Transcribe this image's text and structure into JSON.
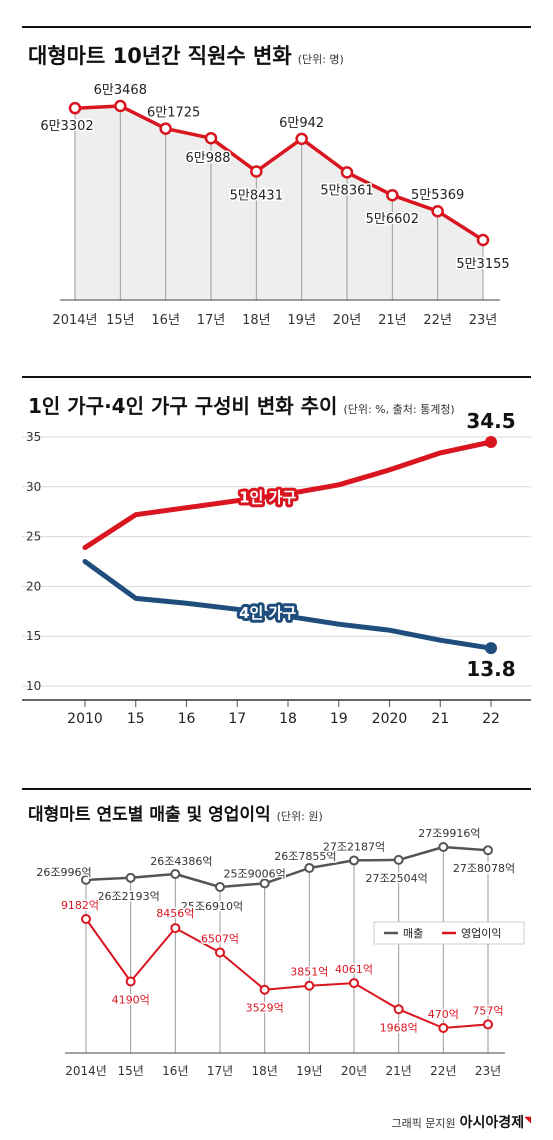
{
  "credit": {
    "prefix": "그래픽 문지원",
    "brand": "아시아경제"
  },
  "colors": {
    "red": "#d9151f",
    "navy": "#1f4e7d",
    "gray": "#555555",
    "area": "#eeeeee"
  },
  "chart_data": [
    {
      "type": "line",
      "title": "대형마트 10년간 직원수 변화",
      "unit": "(단위: 명)",
      "categories": [
        "2014년",
        "15년",
        "16년",
        "17년",
        "18년",
        "19년",
        "20년",
        "21년",
        "22년",
        "23년"
      ],
      "series": [
        {
          "name": "",
          "values": [
            63302,
            63468,
            61725,
            60988,
            58431,
            60942,
            58361,
            56602,
            55369,
            53155
          ]
        }
      ],
      "labels": [
        "6만3302",
        "6만3468",
        "6만1725",
        "6만988",
        "5만8431",
        "6만942",
        "5만8361",
        "5만6602",
        "5만5369",
        "5만3155"
      ],
      "ylim": [
        40000,
        66000
      ]
    },
    {
      "type": "line",
      "title": "1인 가구·4인 가구 구성비 변화 추이",
      "unit": "(단위: %, 출처: 통계청)",
      "categories": [
        "2010",
        "15",
        "16",
        "17",
        "18",
        "19",
        "2020",
        "21",
        "22"
      ],
      "yticks": [
        "35",
        "30",
        "25",
        "20",
        "15",
        "10"
      ],
      "ylim": [
        10,
        35
      ],
      "grid": true,
      "series": [
        {
          "name": "1인 가구",
          "values": [
            23.9,
            27.2,
            27.9,
            28.6,
            29.3,
            30.2,
            31.7,
            33.4,
            34.5
          ]
        },
        {
          "name": "4인 가구",
          "values": [
            22.5,
            18.8,
            18.3,
            17.7,
            17.0,
            16.2,
            15.6,
            14.6,
            13.8
          ]
        }
      ],
      "end_labels": [
        "34.5",
        "13.8"
      ]
    },
    {
      "type": "line",
      "title": "대형마트 연도별 매출 및 영업이익",
      "unit": "(단위: 원)",
      "categories": [
        "2014년",
        "15년",
        "16년",
        "17년",
        "18년",
        "19년",
        "20년",
        "21년",
        "22년",
        "23년"
      ],
      "legend": "right",
      "series": [
        {
          "name": "매출",
          "values": [
            260996,
            262193,
            264386,
            256910,
            259006,
            267855,
            272187,
            272504,
            279916,
            278078
          ],
          "labels": [
            "26조996억",
            "26조2193억",
            "26조4386억",
            "25조6910억",
            "25조9006억",
            "26조7855억",
            "27조2187억",
            "27조2504억",
            "27조9916억",
            "27조8078억"
          ]
        },
        {
          "name": "영업이익",
          "values": [
            9182,
            4190,
            8456,
            6507,
            3529,
            3851,
            4061,
            1968,
            470,
            757
          ],
          "labels": [
            "9182억",
            "4190억",
            "8456억",
            "6507억",
            "3529억",
            "3851억",
            "4061억",
            "1968억",
            "470억",
            "757억"
          ]
        }
      ]
    }
  ]
}
